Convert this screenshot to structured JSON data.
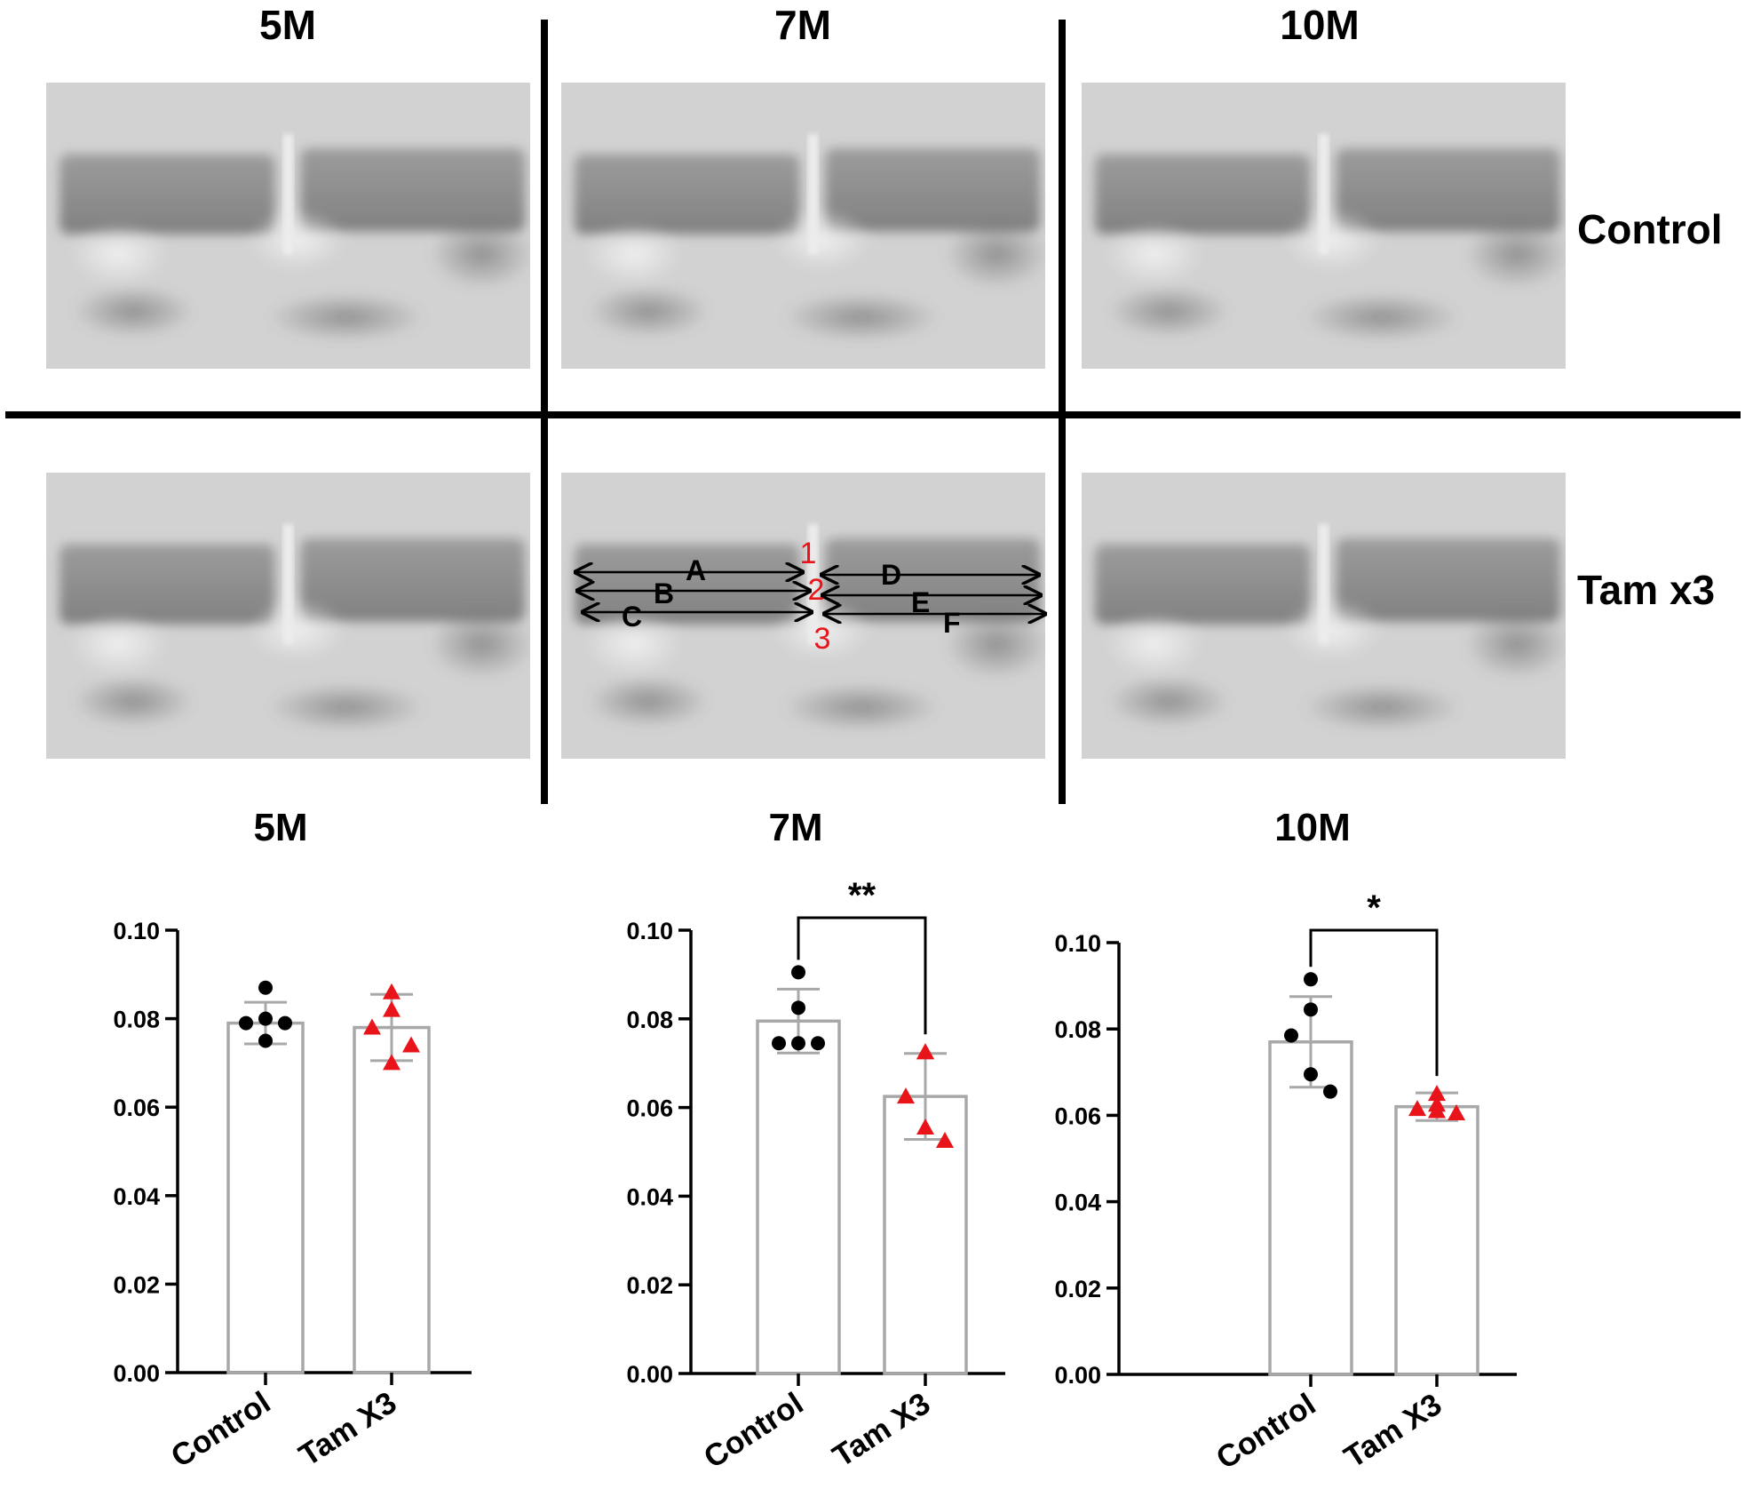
{
  "figure": {
    "column_titles": [
      "5M",
      "7M",
      "10M"
    ],
    "row_labels": [
      "Control",
      "Tam x3"
    ],
    "measurement_labels": {
      "letters": [
        "A",
        "B",
        "C",
        "D",
        "E",
        "F"
      ],
      "numbers": [
        "1",
        "2",
        "3"
      ]
    },
    "chart_titles": [
      "5M",
      "7M",
      "10M"
    ]
  },
  "colors": {
    "control_marker": "#000000",
    "tam_marker": "#e8141a",
    "bar_stroke": "#a8a8a8",
    "axis": "#000000",
    "annotation_red": "#e8141a"
  },
  "chart_data": [
    {
      "type": "bar",
      "title": "5M",
      "categories": [
        "Control",
        "Tam X3"
      ],
      "values": [
        0.079,
        0.078
      ],
      "sd": [
        0.0047,
        0.0075
      ],
      "points": [
        [
          0.087,
          0.08,
          0.079,
          0.075,
          0.079
        ],
        [
          0.086,
          0.082,
          0.078,
          0.07,
          0.074
        ]
      ],
      "y_ticks": [
        "0.00",
        "0.02",
        "0.04",
        "0.06",
        "0.08",
        "0.10"
      ],
      "ylim": [
        0,
        0.1
      ],
      "significance": ""
    },
    {
      "type": "bar",
      "title": "7M",
      "categories": [
        "Control",
        "Tam X3"
      ],
      "values": [
        0.0795,
        0.0625
      ],
      "sd": [
        0.0072,
        0.0097
      ],
      "points": [
        [
          0.0905,
          0.0825,
          0.0745,
          0.0745,
          0.0745
        ],
        [
          0.0725,
          0.0725,
          0.0625,
          0.0555,
          0.0525
        ]
      ],
      "y_ticks": [
        "0.00",
        "0.02",
        "0.04",
        "0.06",
        "0.08",
        "0.10"
      ],
      "ylim": [
        0,
        0.1
      ],
      "significance": "**"
    },
    {
      "type": "bar",
      "title": "10M",
      "categories": [
        "Control",
        "Tam X3"
      ],
      "values": [
        0.077,
        0.062
      ],
      "sd": [
        0.0105,
        0.0032
      ],
      "points": [
        [
          0.0915,
          0.0845,
          0.0785,
          0.0695,
          0.0655
        ],
        [
          0.065,
          0.0625,
          0.0615,
          0.061,
          0.0605
        ]
      ],
      "y_ticks": [
        "0.00",
        "0.02",
        "0.04",
        "0.06",
        "0.08",
        "0.10"
      ],
      "ylim": [
        0,
        0.1
      ],
      "significance": "*"
    }
  ]
}
